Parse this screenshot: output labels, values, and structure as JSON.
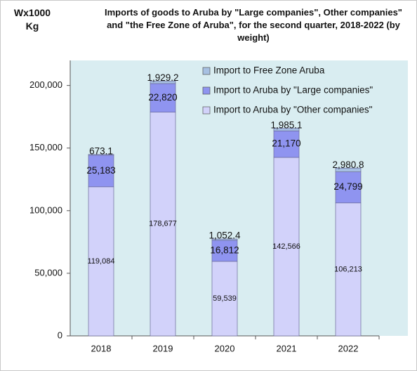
{
  "chart_data": {
    "type": "stacked_bar",
    "title": "Imports of goods to Aruba by \"Large companies\", Other companies\" and \"the Free Zone of Aruba\", for the second quarter, 2018-2022 (by weight)",
    "y_label": "Wx1000 Kg",
    "categories": [
      "2018",
      "2019",
      "2020",
      "2021",
      "2022"
    ],
    "series": [
      {
        "name": "Import to Aruba by \"Other companies\"",
        "color": "#d2d2fa",
        "values": [
          119084,
          178677,
          59539,
          142566,
          106213
        ],
        "value_labels": [
          "119,084",
          "178,677",
          "59,539",
          "142,566",
          "106,213"
        ]
      },
      {
        "name": "Import to Aruba by \"Large companies\"",
        "color": "#8f94f0",
        "values": [
          25183,
          22820,
          16812,
          21170,
          24799
        ],
        "value_labels": [
          "25,183",
          "22,820",
          "16,812",
          "21,170",
          "24,799"
        ]
      },
      {
        "name": "Import to Free Zone Aruba",
        "color": "#a7c0e2",
        "values": [
          673.1,
          1929.2,
          1052.4,
          1985.1,
          2980.8
        ],
        "value_labels": [
          "673.1",
          "1,929.2",
          "1,052.4",
          "1,985.1",
          "2,980.8"
        ]
      }
    ],
    "ylim": [
      0,
      220000
    ],
    "yticks": [
      0,
      {
        "value": 50000,
        "label": "50,000"
      },
      {
        "value": 100000,
        "label": "100,000"
      },
      {
        "value": 150000,
        "label": "150,000"
      },
      {
        "value": 200000,
        "label": "200,000"
      }
    ],
    "legend": "top-right"
  }
}
